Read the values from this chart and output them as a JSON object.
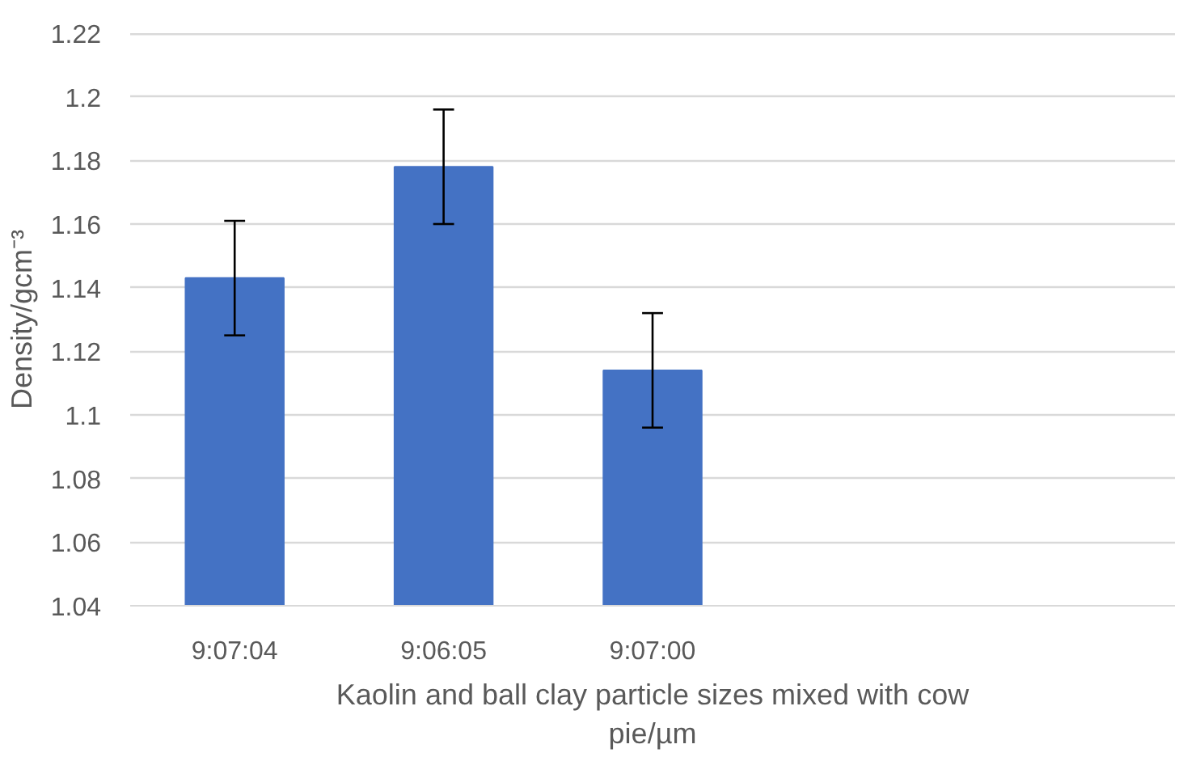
{
  "chart_data": {
    "type": "bar",
    "xlabel": "Kaolin and ball clay particle sizes mixed with cow pie/µm",
    "ylabel": "Density/gcm⁻³",
    "categories": [
      "9:07:04",
      "9:06:05",
      "9:07:00",
      null,
      null
    ],
    "values": [
      1.143,
      1.178,
      1.114,
      null,
      null
    ],
    "errors": [
      0.018,
      0.018,
      0.018,
      null,
      null
    ],
    "color": "#4472c4",
    "ylim": [
      1.04,
      1.22
    ],
    "yticks": [
      1.04,
      1.06,
      1.08,
      1.1,
      1.12,
      1.14,
      1.16,
      1.18,
      1.2,
      1.22
    ],
    "grid": "y"
  }
}
